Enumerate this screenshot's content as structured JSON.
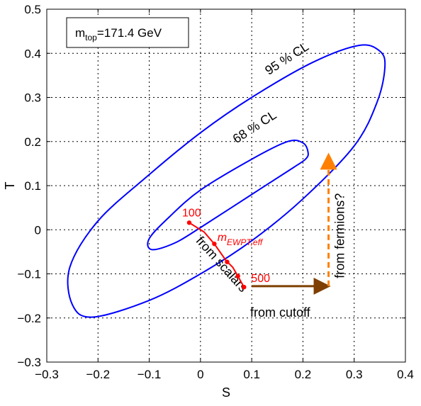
{
  "chart_data": {
    "type": "scatter",
    "title": "",
    "xlabel": "S",
    "ylabel": "T",
    "xlim": [
      -0.3,
      0.4
    ],
    "ylim": [
      -0.3,
      0.5
    ],
    "x_ticks": [
      -0.3,
      -0.2,
      -0.1,
      0,
      0.1,
      0.2,
      0.3,
      0.4
    ],
    "y_ticks": [
      -0.3,
      -0.2,
      -0.1,
      0,
      0.1,
      0.2,
      0.3,
      0.4,
      0.5
    ],
    "x_tick_labels": [
      "−0.3",
      "−0.2",
      "−0.1",
      "0",
      "0.1",
      "0.2",
      "0.3",
      "0.4"
    ],
    "y_tick_labels": [
      "−0.3",
      "−0.2",
      "−0.1",
      "0",
      "0.1",
      "0.2",
      "0.3",
      "0.4",
      "0.5"
    ],
    "grid": true,
    "legend_box": {
      "text_main": "m",
      "text_sub": "top",
      "text_rest": "=171.4 GeV"
    },
    "ellipses": [
      {
        "name": "95 % CL",
        "color": "#0000ff",
        "points": [
          [
            0.36,
            0.37
          ],
          [
            0.35,
            0.405
          ],
          [
            0.31,
            0.418
          ],
          [
            0.22,
            0.38
          ],
          [
            0.1,
            0.3
          ],
          [
            0.0,
            0.22
          ],
          [
            -0.1,
            0.125
          ],
          [
            -0.2,
            0.02
          ],
          [
            -0.255,
            -0.085
          ],
          [
            -0.25,
            -0.17
          ],
          [
            -0.21,
            -0.198
          ],
          [
            -0.1,
            -0.16
          ],
          [
            0.0,
            -0.1
          ],
          [
            0.1,
            -0.025
          ],
          [
            0.2,
            0.07
          ],
          [
            0.3,
            0.19
          ],
          [
            0.345,
            0.29
          ]
        ]
      },
      {
        "name": "68 % CL",
        "color": "#0000ff",
        "points": [
          [
            0.21,
            0.175
          ],
          [
            0.2,
            0.197
          ],
          [
            0.17,
            0.2
          ],
          [
            0.1,
            0.16
          ],
          [
            0.0,
            0.09
          ],
          [
            -0.06,
            0.03
          ],
          [
            -0.1,
            -0.02
          ],
          [
            -0.095,
            -0.045
          ],
          [
            -0.05,
            -0.03
          ],
          [
            0.0,
            0.005
          ],
          [
            0.1,
            0.08
          ],
          [
            0.18,
            0.14
          ],
          [
            0.205,
            0.16
          ]
        ]
      }
    ],
    "series": [
      {
        "name": "m_EWPT,eff",
        "color": "#ff0000",
        "points": [
          [
            -0.022,
            0.016
          ],
          [
            0.007,
            -0.005
          ],
          [
            0.027,
            -0.032
          ],
          [
            0.05,
            -0.07
          ],
          [
            0.063,
            -0.085
          ],
          [
            0.073,
            -0.105
          ],
          [
            0.085,
            -0.13
          ]
        ],
        "markers": [
          [
            -0.022,
            0.016
          ],
          [
            0.027,
            -0.032
          ],
          [
            0.052,
            -0.073
          ],
          [
            0.073,
            -0.105
          ],
          [
            0.085,
            -0.13
          ]
        ],
        "start_label": "100",
        "end_label": "500",
        "label_main": "m",
        "label_sub": "EWPT,eff"
      }
    ],
    "arrows": [
      {
        "name": "from cutoff",
        "from": [
          0.1,
          -0.128
        ],
        "to": [
          0.25,
          -0.128
        ],
        "color": "#7f3f00",
        "style": "solid"
      },
      {
        "name": "from fermions?",
        "from": [
          0.25,
          -0.128
        ],
        "to": [
          0.25,
          0.17
        ],
        "color": "#ff8000",
        "style": "dashed"
      }
    ],
    "annotations": [
      {
        "text": "95 % CL",
        "x": 0.133,
        "y": 0.35,
        "rotation": -33
      },
      {
        "text": "68 % CL",
        "x": 0.07,
        "y": 0.195,
        "rotation": -33
      },
      {
        "text": "from scalars",
        "x": -0.01,
        "y": -0.026,
        "rotation": 48
      },
      {
        "text": "from cutoff",
        "x": 0.097,
        "y": -0.197,
        "rotation": 0
      },
      {
        "text": "from fermions?",
        "x": 0.28,
        "y": -0.11,
        "rotation": -90
      }
    ]
  }
}
